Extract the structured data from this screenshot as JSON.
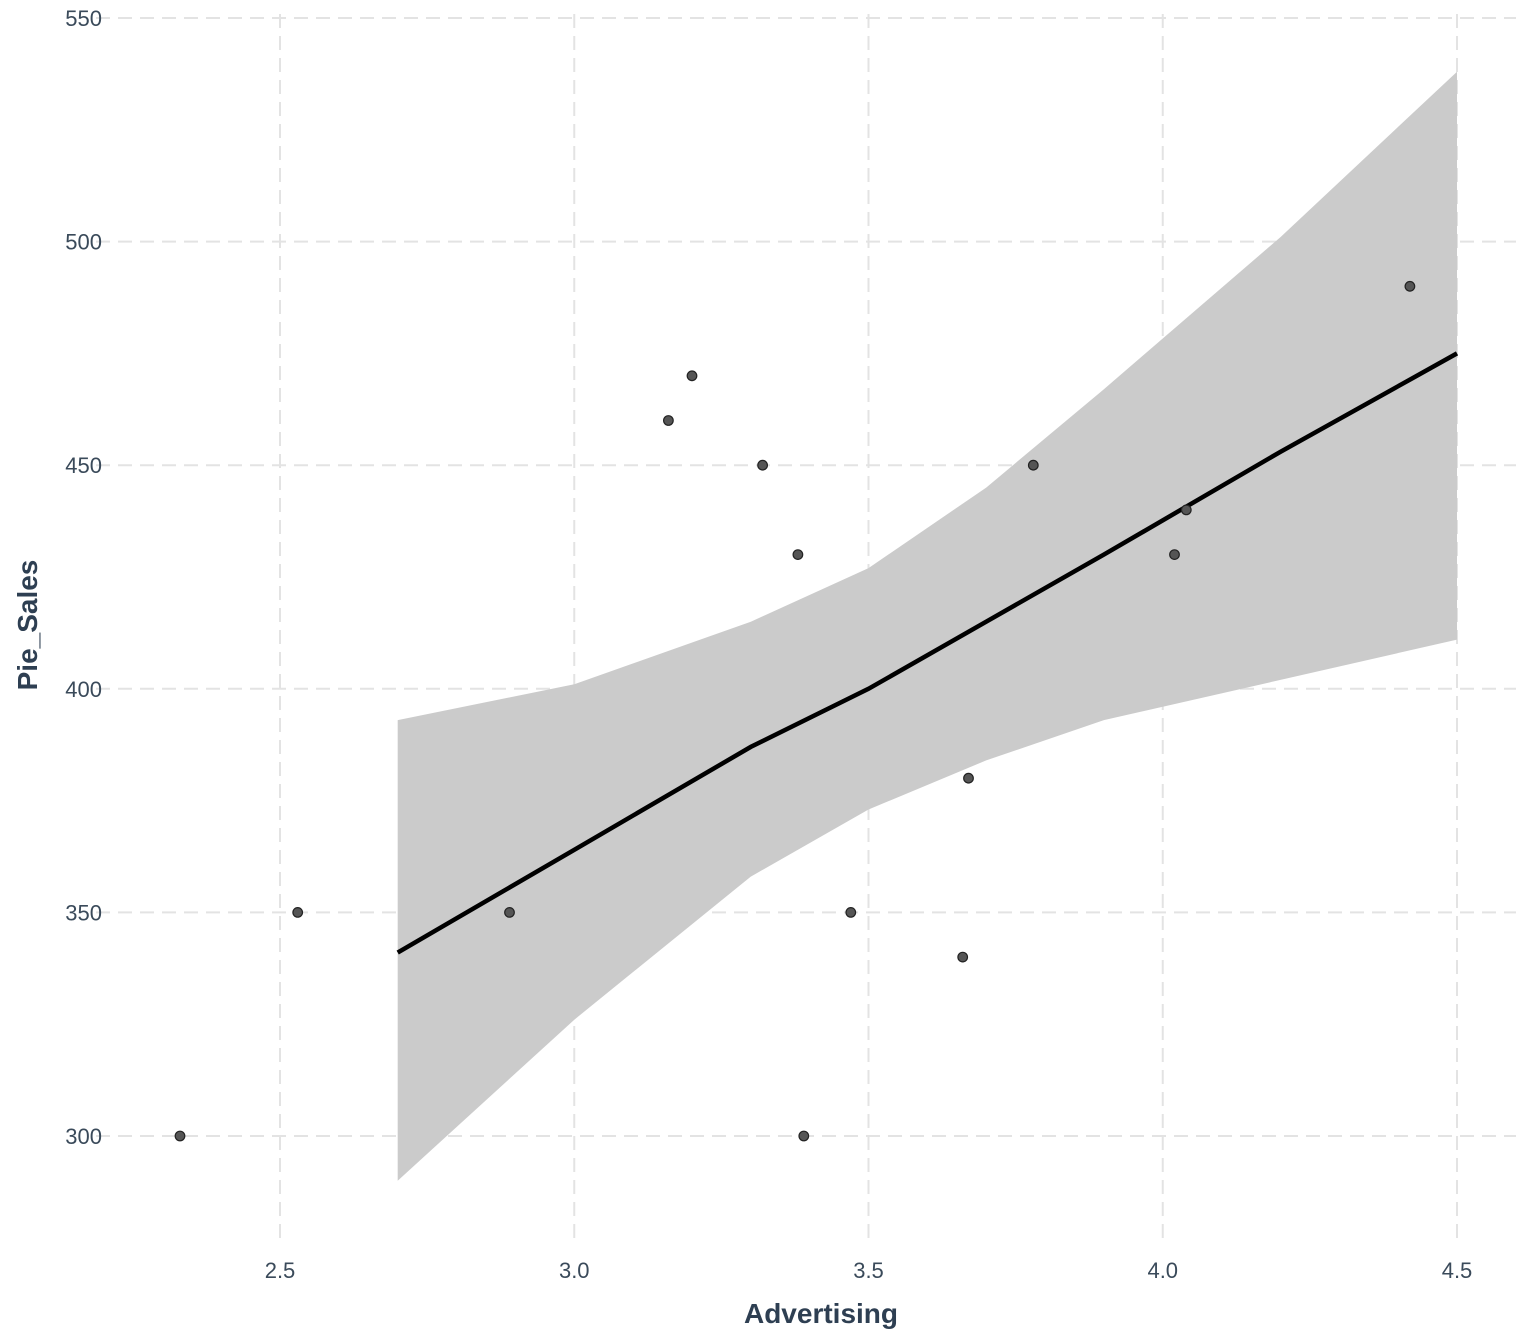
{
  "chart_data": {
    "type": "scatter",
    "title": "",
    "xlabel": "Advertising",
    "ylabel": "Pie_Sales",
    "xlim": [
      2.2,
      4.6
    ],
    "ylim": [
      280,
      555
    ],
    "x_ticks": [
      2.5,
      3.0,
      3.5,
      4.0,
      4.5
    ],
    "x_tick_labels": [
      "2.5",
      "3.0",
      "3.5",
      "4.0",
      "4.5"
    ],
    "y_ticks": [
      300,
      350,
      400,
      450,
      500,
      550
    ],
    "y_tick_labels": [
      "300",
      "350",
      "400",
      "450",
      "500",
      "550"
    ],
    "grid": true,
    "points": [
      {
        "x": 2.33,
        "y": 300
      },
      {
        "x": 2.53,
        "y": 350
      },
      {
        "x": 2.89,
        "y": 350
      },
      {
        "x": 3.16,
        "y": 460
      },
      {
        "x": 3.2,
        "y": 470
      },
      {
        "x": 3.32,
        "y": 450
      },
      {
        "x": 3.38,
        "y": 430
      },
      {
        "x": 3.39,
        "y": 300
      },
      {
        "x": 3.47,
        "y": 350
      },
      {
        "x": 3.66,
        "y": 340
      },
      {
        "x": 3.67,
        "y": 380
      },
      {
        "x": 3.78,
        "y": 450
      },
      {
        "x": 4.02,
        "y": 430
      },
      {
        "x": 4.04,
        "y": 440
      },
      {
        "x": 4.42,
        "y": 490
      }
    ],
    "fit": {
      "x": [
        2.7,
        3.0,
        3.3,
        3.5,
        3.7,
        3.9,
        4.2,
        4.5
      ],
      "y": [
        341,
        364,
        387,
        400,
        415,
        430,
        453,
        475
      ],
      "ci_lower": [
        290,
        326,
        358,
        373,
        384,
        393,
        402,
        411
      ],
      "ci_upper": [
        393,
        401,
        415,
        427,
        445,
        467,
        501,
        538
      ]
    },
    "colors": {
      "point_fill": "#555555",
      "point_stroke": "#222222",
      "line": "#000000",
      "band": "#cbcbcb",
      "grid": "#e3e3e3",
      "text": "#3a4a5a"
    }
  }
}
